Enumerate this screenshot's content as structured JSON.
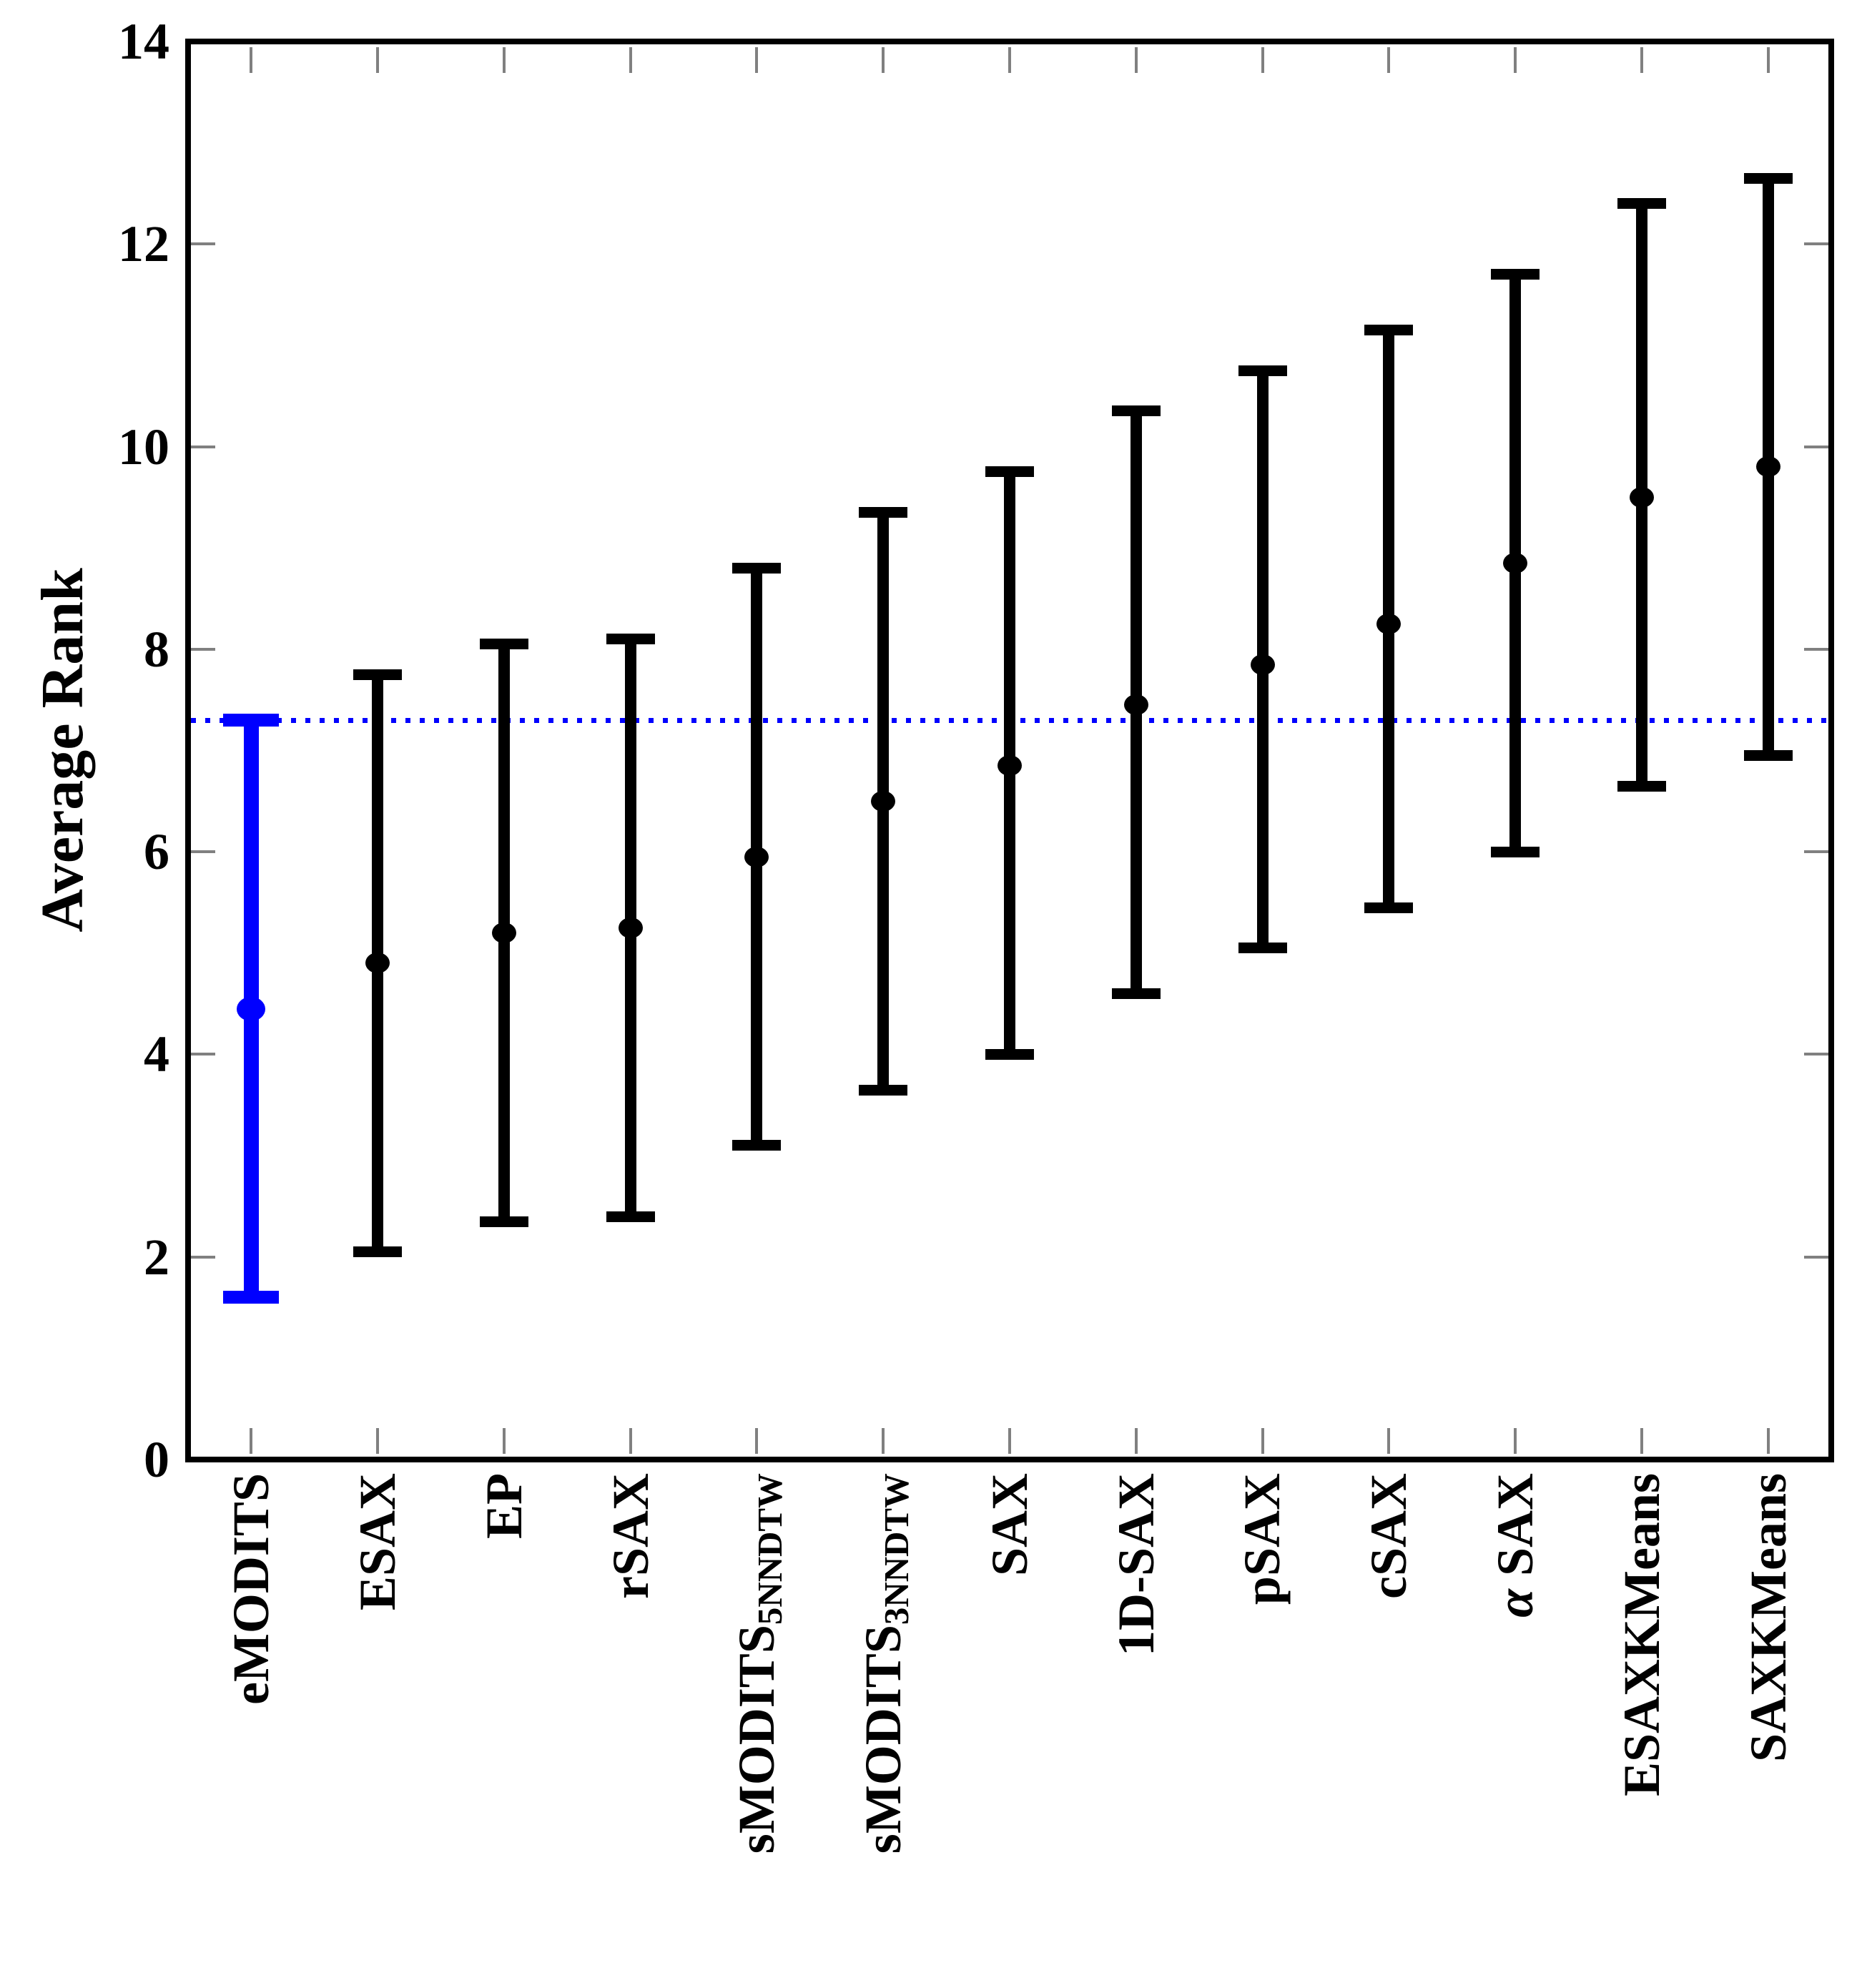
{
  "figure": {
    "background": "#ffffff",
    "frame_color": "#000000",
    "minor_tick_color": "#808080",
    "accent_blue": "#0000ff"
  },
  "chart_data": {
    "type": "errorbar",
    "title": "",
    "xlabel": "",
    "ylabel": "Average Rank",
    "ylim": [
      0,
      14
    ],
    "yticks": [
      0,
      2,
      4,
      6,
      8,
      10,
      12,
      14
    ],
    "grid": false,
    "frame": true,
    "legend": null,
    "marker": "circle",
    "reference_line": {
      "value": 7.3,
      "color": "#0000ff",
      "style": "dotted"
    },
    "series": [
      {
        "label": "eMODITS",
        "mean": 4.45,
        "lower": 1.6,
        "upper": 7.3,
        "color": "#0000ff"
      },
      {
        "label": "ESAX",
        "mean": 4.9,
        "lower": 2.05,
        "upper": 7.75,
        "color": "#000000"
      },
      {
        "label": "EP",
        "mean": 5.2,
        "lower": 2.35,
        "upper": 8.05,
        "color": "#000000"
      },
      {
        "label": "rSAX",
        "mean": 5.25,
        "lower": 2.4,
        "upper": 8.1,
        "color": "#000000"
      },
      {
        "label": "sMODITS_{5NNDTW}",
        "mean": 5.95,
        "lower": 3.1,
        "upper": 8.8,
        "color": "#000000"
      },
      {
        "label": "sMODITS_{3NNDTW}",
        "mean": 6.5,
        "lower": 3.65,
        "upper": 9.35,
        "color": "#000000"
      },
      {
        "label": "SAX",
        "mean": 6.85,
        "lower": 4.0,
        "upper": 9.75,
        "color": "#000000"
      },
      {
        "label": "1D-SAX",
        "mean": 7.45,
        "lower": 4.6,
        "upper": 10.35,
        "color": "#000000"
      },
      {
        "label": "pSAX",
        "mean": 7.85,
        "lower": 5.05,
        "upper": 10.75,
        "color": "#000000"
      },
      {
        "label": "cSAX",
        "mean": 8.25,
        "lower": 5.45,
        "upper": 11.15,
        "color": "#000000"
      },
      {
        "label": "α SAX",
        "mean": 8.85,
        "lower": 6.0,
        "upper": 11.7,
        "color": "#000000"
      },
      {
        "label": "ESAXKMeans",
        "mean": 9.5,
        "lower": 6.65,
        "upper": 12.4,
        "color": "#000000"
      },
      {
        "label": "SAXKMeans",
        "mean": 9.8,
        "lower": 6.95,
        "upper": 12.65,
        "color": "#000000"
      }
    ]
  }
}
